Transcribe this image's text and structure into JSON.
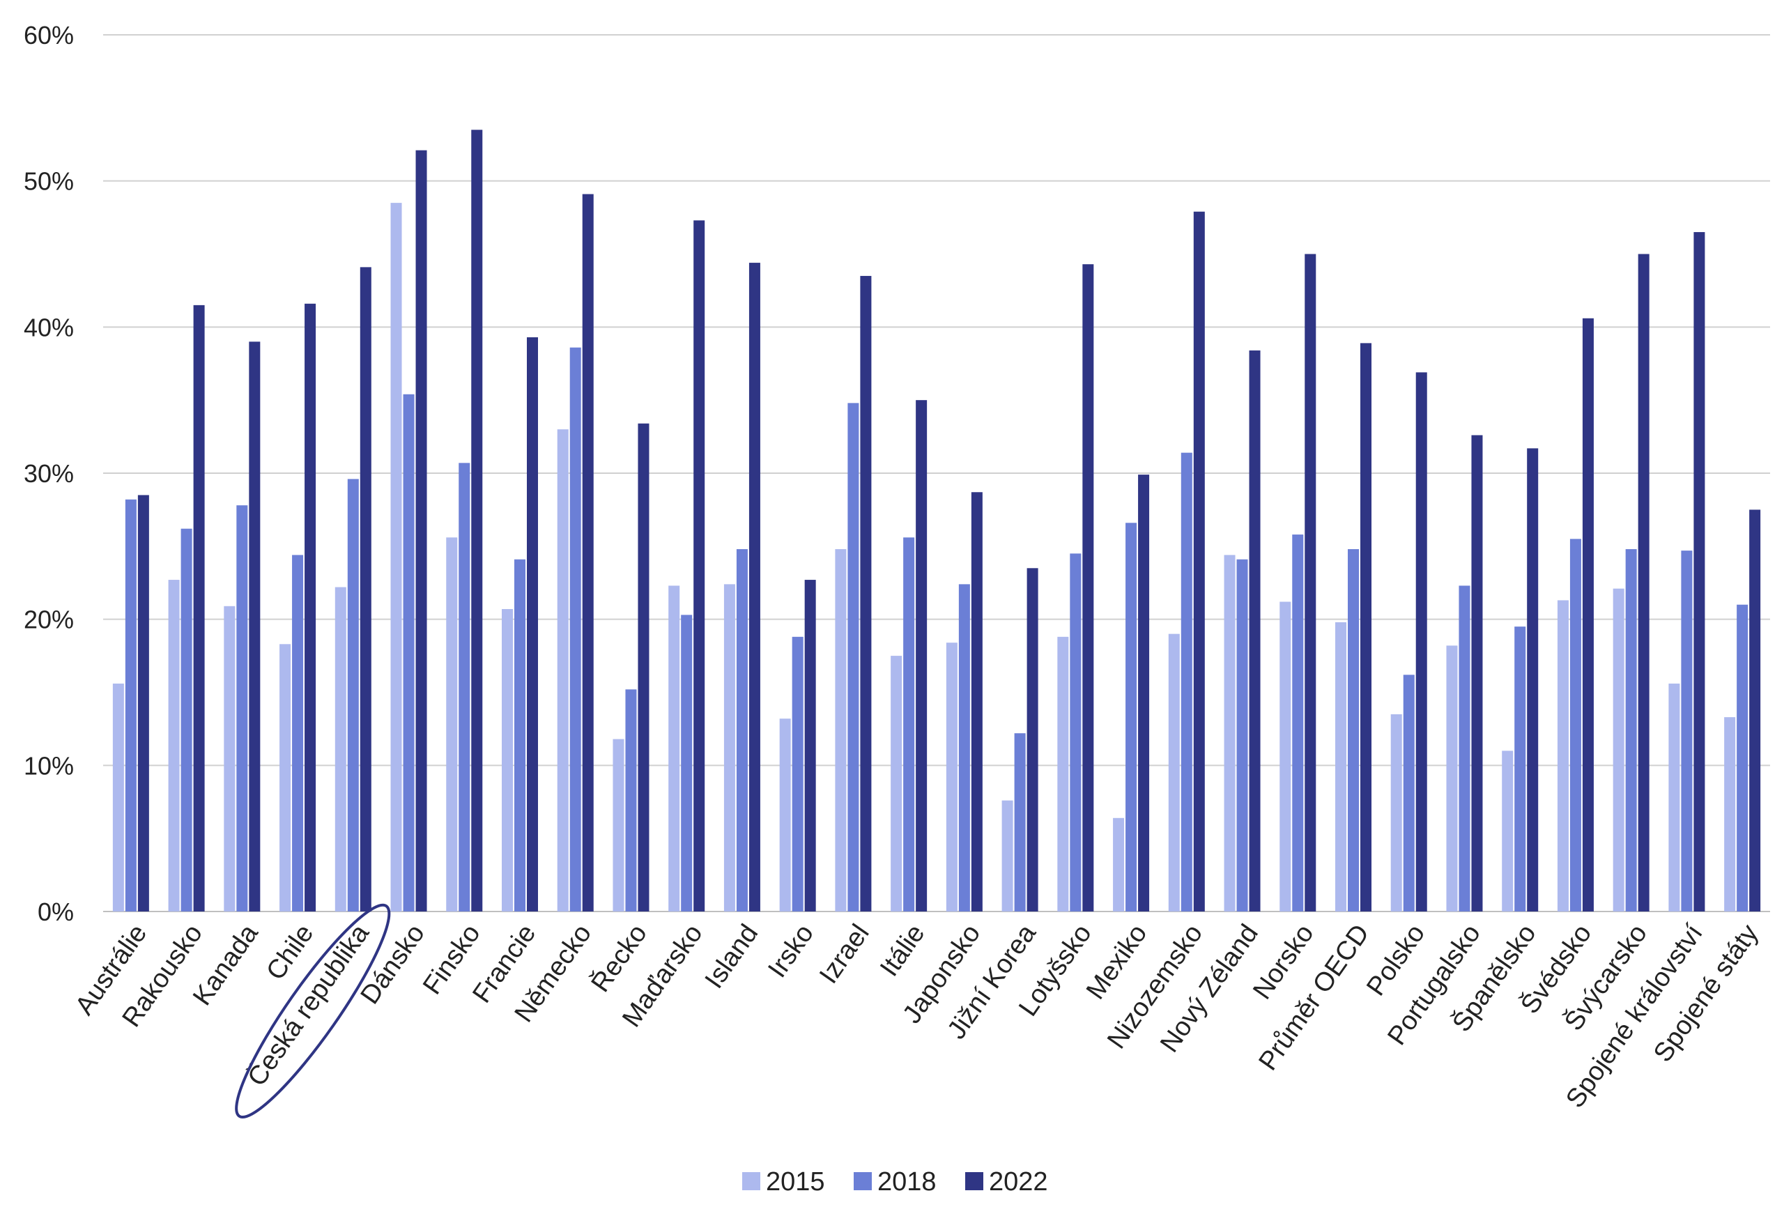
{
  "chart_data": {
    "type": "bar",
    "title": "",
    "xlabel": "",
    "ylabel": "",
    "ylim": [
      0,
      60
    ],
    "yticks": [
      "0%",
      "10%",
      "20%",
      "30%",
      "40%",
      "50%",
      "60%"
    ],
    "grid": true,
    "legend_position": "bottom-center",
    "highlighted_category": "Česká republika",
    "categories": [
      "Austrálie",
      "Rakousko",
      "Kanada",
      "Chile",
      "Česká republika",
      "Dánsko",
      "Finsko",
      "Francie",
      "Německo",
      "Řecko",
      "Maďarsko",
      "Island",
      "Irsko",
      "Izrael",
      "Itálie",
      "Japonsko",
      "Jižní Korea",
      "Lotyšsko",
      "Mexiko",
      "Nizozemsko",
      "Nový Zéland",
      "Norsko",
      "Průměr OECD",
      "Polsko",
      "Portugalsko",
      "Španělsko",
      "Švédsko",
      "Švýcarsko",
      "Spojené království",
      "Spojené státy"
    ],
    "series": [
      {
        "name": "2015",
        "color": "#adb9ee",
        "values": [
          15.6,
          22.7,
          20.9,
          18.3,
          22.2,
          48.5,
          25.6,
          20.7,
          33.0,
          11.8,
          22.3,
          22.4,
          13.2,
          24.8,
          17.5,
          18.4,
          7.6,
          18.8,
          6.4,
          19.0,
          24.4,
          21.2,
          19.8,
          13.5,
          18.2,
          11.0,
          21.3,
          22.1,
          15.6,
          13.3
        ]
      },
      {
        "name": "2018",
        "color": "#6b7fd6",
        "values": [
          28.2,
          26.2,
          27.8,
          24.4,
          29.6,
          35.4,
          30.7,
          24.1,
          38.6,
          15.2,
          20.3,
          24.8,
          18.8,
          34.8,
          25.6,
          22.4,
          12.2,
          24.5,
          26.6,
          31.4,
          24.1,
          25.8,
          24.8,
          16.2,
          22.3,
          19.5,
          25.5,
          24.8,
          24.7,
          21.0
        ]
      },
      {
        "name": "2022",
        "color": "#2f3584",
        "values": [
          28.5,
          41.5,
          39.0,
          41.6,
          44.1,
          52.1,
          53.5,
          39.3,
          49.1,
          33.4,
          47.3,
          44.4,
          22.7,
          43.5,
          35.0,
          28.7,
          23.5,
          44.3,
          29.9,
          47.9,
          38.4,
          45.0,
          38.9,
          36.9,
          32.6,
          31.7,
          40.6,
          45.0,
          46.5,
          27.5
        ]
      }
    ]
  }
}
